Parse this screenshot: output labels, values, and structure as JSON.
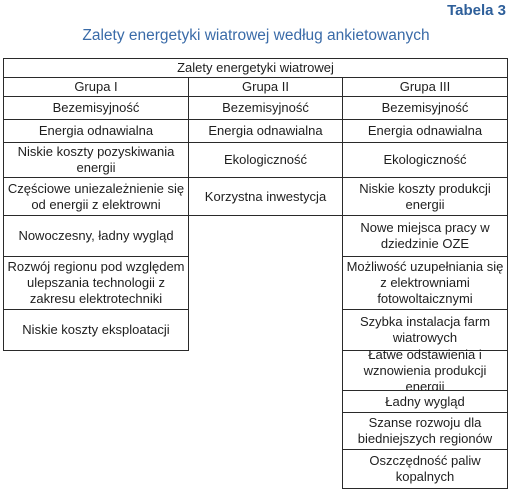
{
  "table_number": "Tabela 3",
  "caption": "Zalety energetyki wiatrowej według ankietowanych",
  "header": "Zalety energetyki wiatrowej",
  "groups": [
    "Grupa I",
    "Grupa II",
    "Grupa III"
  ],
  "group1": [
    "Bezemisyjność",
    "Energia odnawialna",
    "Niskie koszty pozyskiwania energii",
    "Częściowe uniezależnienie się od energii z elektrowni",
    "Nowoczesny, ładny wygląd",
    "Rozwój regionu pod względem ulepszania technologii z zakresu elektrotechniki",
    "Niskie koszty eksploatacji"
  ],
  "group2": [
    "Bezemisyjność",
    "Energia odnawialna",
    "Ekologiczność",
    "Korzystna inwestycja"
  ],
  "group3": [
    "Bezemisyjność",
    "Energia odnawialna",
    "Ekologiczność",
    "Niskie koszty produkcji energii",
    "Nowe miejsca pracy w dziedzinie OZE",
    "Możliwość uzupełniania się z elektrowniami fotowoltaicznymi",
    "Szybka instalacja farm wiatrowych",
    "Łatwe odstawienia i wznowienia produkcji energii",
    "Ładny wygląd",
    "Szanse rozwoju dla biedniejszych regionów",
    "Oszczędność paliw kopalnych"
  ]
}
